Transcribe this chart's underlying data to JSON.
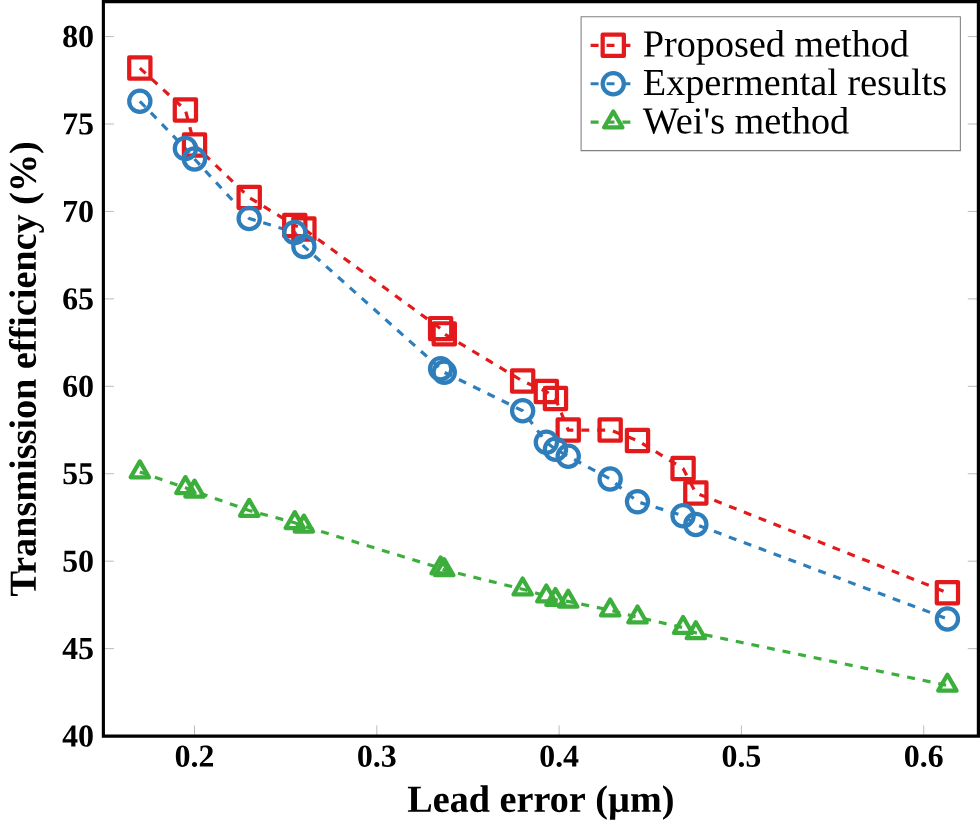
{
  "chart_data": {
    "type": "line",
    "xlabel": "Lead error (µm)",
    "ylabel": "Transmission efficiency (%)",
    "x": [
      0.17,
      0.195,
      0.2,
      0.23,
      0.255,
      0.26,
      0.335,
      0.337,
      0.38,
      0.393,
      0.398,
      0.405,
      0.428,
      0.443,
      0.468,
      0.475,
      0.613
    ],
    "series": [
      {
        "name": "Proposed method",
        "color": "#e31a1c",
        "marker": "square",
        "values": [
          78.2,
          75.8,
          73.8,
          70.8,
          69.2,
          69.0,
          63.3,
          63.0,
          60.3,
          59.7,
          59.3,
          57.5,
          57.5,
          56.9,
          55.3,
          53.9,
          48.2
        ]
      },
      {
        "name": "Expermental results",
        "color": "#2f7ebc",
        "marker": "circle",
        "values": [
          76.3,
          73.6,
          73.0,
          69.6,
          68.8,
          68.0,
          61.0,
          60.8,
          58.6,
          56.8,
          56.4,
          56.0,
          54.7,
          53.4,
          52.6,
          52.1,
          46.7
        ]
      },
      {
        "name": "Wei's method",
        "color": "#3cae3c",
        "marker": "triangle",
        "values": [
          55.1,
          54.2,
          54.0,
          52.9,
          52.2,
          52.0,
          49.6,
          49.5,
          48.4,
          48.0,
          47.8,
          47.7,
          47.2,
          46.8,
          46.2,
          45.9,
          42.9
        ]
      }
    ],
    "xlim": [
      0.15,
      0.63
    ],
    "ylim": [
      40,
      82
    ],
    "xticks": [
      0.2,
      0.3,
      0.4,
      0.5,
      0.6
    ],
    "yticks": [
      40,
      45,
      50,
      55,
      60,
      65,
      70,
      75,
      80
    ],
    "line_style": "dashed",
    "legend": "top right",
    "grid": false
  }
}
